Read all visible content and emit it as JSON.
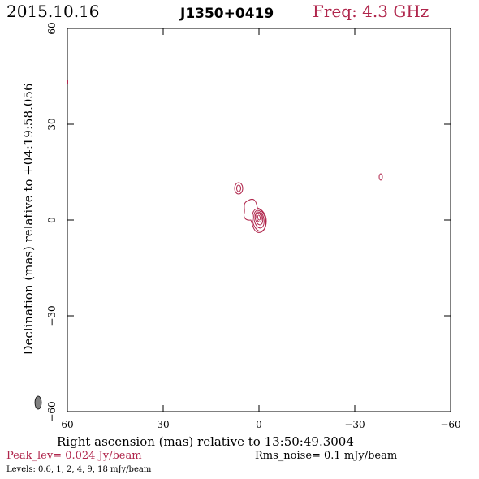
{
  "header": {
    "date": "2015.10.16",
    "source": "J1350+0419",
    "freq": "Freq: 4.3 GHz"
  },
  "axes": {
    "xlabel": "Right ascension (mas) relative to 13:50:49.3004",
    "ylabel": "Declination (mas) relative to +04:19:58.056",
    "xticks": [
      "60",
      "30",
      "0",
      "−30",
      "−60"
    ],
    "yticks": [
      "60",
      "30",
      "0",
      "−30",
      "−60"
    ]
  },
  "footer": {
    "peak": "Peak_lev=  0.024 Jy/beam",
    "rms": "Rms_noise=   0.1 mJy/beam",
    "levels": "Levels: 0.6,    1,    2,    4,    9,   18 mJy/beam"
  },
  "colors": {
    "contour": "#b0264c",
    "beam": "#808080"
  }
}
